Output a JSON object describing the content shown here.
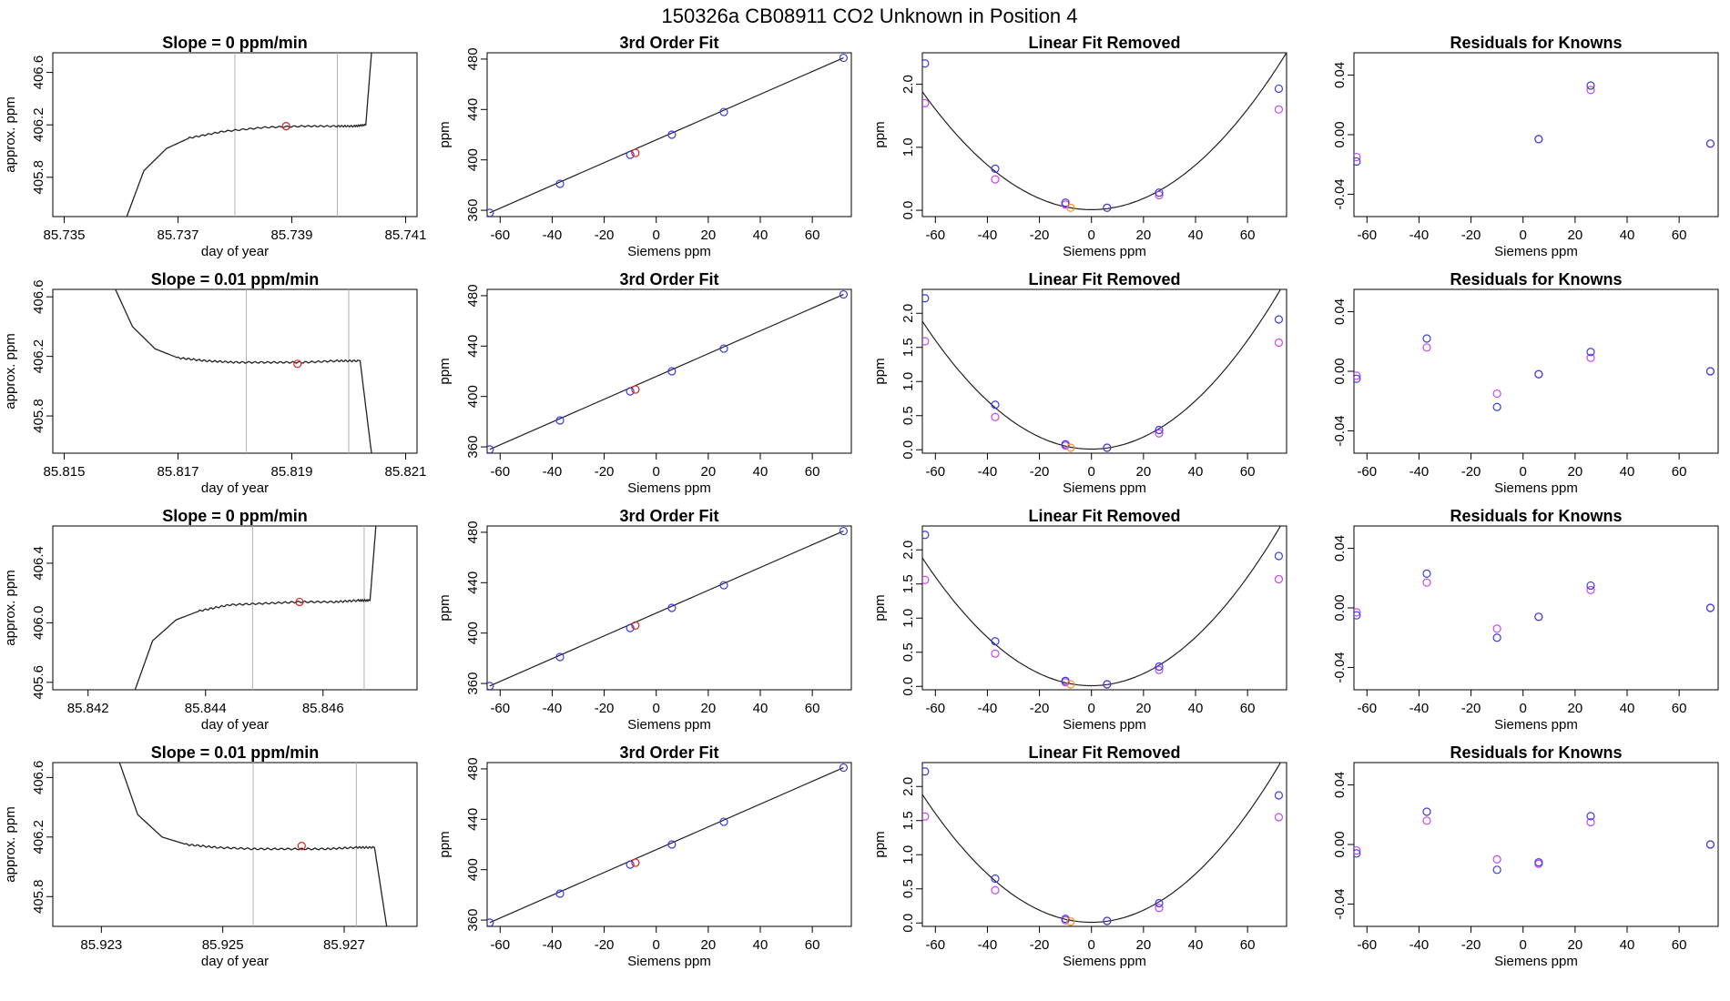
{
  "figure_title": "150326a     CB08911   CO2 Unknown in Position  4",
  "colors": {
    "known_blue": "#3a3ae8",
    "known_magenta": "#cc44ee",
    "unknown_red": "#e02020",
    "unknown_orange": "#ff8c1a",
    "line": "#222222",
    "marker_line": "#b0b0b0"
  },
  "chart_data": [
    {
      "type": "line",
      "row": 0,
      "col": 0,
      "title": "Slope =  0  ppm/min",
      "xlabel": "day of year",
      "ylabel": "approx. ppm",
      "xlim": [
        85.7348,
        85.7412
      ],
      "ylim": [
        405.5,
        406.75
      ],
      "xticks": [
        85.735,
        85.737,
        85.739,
        85.741
      ],
      "xtick_labels": [
        "85.735",
        "85.737",
        "85.739",
        "85.741"
      ],
      "yticks": [
        405.8,
        406.2,
        406.6
      ],
      "ytick_labels": [
        "405.8",
        "406.2",
        "406.6"
      ],
      "series": [
        {
          "x": [
            85.7361,
            85.7364,
            85.7368,
            85.7372,
            85.7378,
            85.7385,
            85.7392,
            85.7398,
            85.7401,
            85.7403,
            85.7404
          ],
          "y": [
            405.5,
            405.85,
            406.02,
            406.1,
            406.15,
            406.18,
            406.19,
            406.19,
            406.19,
            406.2,
            406.75
          ]
        }
      ],
      "vlines": [
        85.738,
        85.7398
      ],
      "marker": {
        "x": 85.7389,
        "y": 406.19
      }
    },
    {
      "type": "scatter",
      "row": 0,
      "col": 1,
      "title": "3rd Order Fit",
      "xlabel": "Siemens ppm",
      "ylabel": "ppm",
      "xlim": [
        -65,
        75
      ],
      "ylim": [
        355,
        485
      ],
      "xticks": [
        -60,
        -40,
        -20,
        0,
        20,
        40,
        60
      ],
      "yticks": [
        360,
        400,
        440,
        480
      ],
      "x": [
        -64,
        -37,
        -10,
        6,
        26,
        72
      ],
      "y": [
        358,
        381,
        404,
        420,
        438,
        481
      ],
      "unknown": {
        "x": -8,
        "y": 405.5
      }
    },
    {
      "type": "scatter",
      "row": 0,
      "col": 2,
      "title": "Linear Fit Removed",
      "xlabel": "Siemens ppm",
      "ylabel": "ppm",
      "xlim": [
        -65,
        75
      ],
      "ylim": [
        -0.1,
        2.5
      ],
      "xticks": [
        -60,
        -40,
        -20,
        0,
        20,
        40,
        60
      ],
      "yticks": [
        0.0,
        1.0,
        2.0
      ],
      "ytick_labels": [
        "0.0",
        "1.0",
        "2.0"
      ],
      "curve_a": 0.000443,
      "x": [
        -64,
        -37,
        -10,
        6,
        26,
        72
      ],
      "y_blue": [
        2.33,
        0.66,
        0.12,
        0.04,
        0.28,
        1.93
      ],
      "y_magenta": [
        1.7,
        0.49,
        0.09,
        0.04,
        0.24,
        1.6
      ],
      "unknown": {
        "x": -8,
        "y": 0.04
      }
    },
    {
      "type": "scatter",
      "row": 0,
      "col": 3,
      "title": "Residuals for Knowns",
      "xlabel": "Siemens ppm",
      "ylabel": "",
      "xlim": [
        -65,
        75
      ],
      "ylim": [
        -0.055,
        0.055
      ],
      "xticks": [
        -60,
        -40,
        -20,
        0,
        20,
        40,
        60
      ],
      "yticks": [
        -0.04,
        0.0,
        0.04
      ],
      "ytick_labels": [
        "-0.04",
        "0.00",
        "0.04"
      ],
      "x": [
        -64,
        6,
        26,
        72
      ],
      "y_blue": [
        -0.018,
        -0.003,
        0.033,
        -0.006
      ],
      "y_magenta": [
        -0.015,
        -0.003,
        0.03,
        -0.006
      ]
    },
    {
      "type": "line",
      "row": 1,
      "col": 0,
      "title": "Slope =  0.01  ppm/min",
      "xlabel": "day of year",
      "ylabel": "approx. ppm",
      "xlim": [
        85.8148,
        85.8212
      ],
      "ylim": [
        405.55,
        406.65
      ],
      "xticks": [
        85.815,
        85.817,
        85.819,
        85.821
      ],
      "xtick_labels": [
        "85.815",
        "85.817",
        "85.819",
        "85.821"
      ],
      "yticks": [
        405.8,
        406.2,
        406.6
      ],
      "ytick_labels": [
        "405.8",
        "406.2",
        "406.6"
      ],
      "series": [
        {
          "x": [
            85.8159,
            85.8162,
            85.8166,
            85.817,
            85.8175,
            85.818,
            85.8186,
            85.8192,
            85.8198,
            85.8202,
            85.8204
          ],
          "y": [
            406.65,
            406.4,
            406.25,
            406.19,
            406.17,
            406.16,
            406.16,
            406.16,
            406.17,
            406.17,
            405.55
          ]
        }
      ],
      "vlines": [
        85.8182,
        85.82
      ],
      "marker": {
        "x": 85.8191,
        "y": 406.15
      }
    },
    {
      "type": "scatter",
      "row": 1,
      "col": 1,
      "title": "3rd Order Fit",
      "xlabel": "Siemens ppm",
      "ylabel": "ppm",
      "xlim": [
        -65,
        75
      ],
      "ylim": [
        355,
        485
      ],
      "xticks": [
        -60,
        -40,
        -20,
        0,
        20,
        40,
        60
      ],
      "yticks": [
        360,
        400,
        440,
        480
      ],
      "x": [
        -64,
        -37,
        -10,
        6,
        26,
        72
      ],
      "y": [
        358,
        381,
        404,
        420,
        438,
        481
      ],
      "unknown": {
        "x": -8,
        "y": 405.5
      }
    },
    {
      "type": "scatter",
      "row": 1,
      "col": 2,
      "title": "Linear Fit Removed",
      "xlabel": "Siemens ppm",
      "ylabel": "ppm",
      "xlim": [
        -65,
        75
      ],
      "ylim": [
        -0.05,
        2.35
      ],
      "xticks": [
        -60,
        -40,
        -20,
        0,
        20,
        40,
        60
      ],
      "yticks": [
        0.0,
        0.5,
        1.0,
        1.5,
        2.0
      ],
      "ytick_labels": [
        "0.0",
        "0.5",
        "1.0",
        "1.5",
        "2.0"
      ],
      "curve_a": 0.000443,
      "x": [
        -64,
        -37,
        -10,
        6,
        26,
        72
      ],
      "y_blue": [
        2.22,
        0.66,
        0.08,
        0.03,
        0.29,
        1.91
      ],
      "y_magenta": [
        1.59,
        0.48,
        0.06,
        0.03,
        0.24,
        1.57
      ],
      "unknown": {
        "x": -8,
        "y": 0.03
      }
    },
    {
      "type": "scatter",
      "row": 1,
      "col": 3,
      "title": "Residuals for Knowns",
      "xlabel": "Siemens ppm",
      "ylabel": "",
      "xlim": [
        -65,
        75
      ],
      "ylim": [
        -0.055,
        0.055
      ],
      "xticks": [
        -60,
        -40,
        -20,
        0,
        20,
        40,
        60
      ],
      "yticks": [
        -0.04,
        0.0,
        0.04
      ],
      "ytick_labels": [
        "-0.04",
        "0.00",
        "0.04"
      ],
      "x": [
        -64,
        -37,
        -10,
        6,
        26,
        72
      ],
      "y_blue": [
        -0.005,
        0.022,
        -0.024,
        -0.002,
        0.013,
        0.0
      ],
      "y_magenta": [
        -0.003,
        0.016,
        -0.015,
        -0.002,
        0.009,
        0.0
      ]
    },
    {
      "type": "line",
      "row": 2,
      "col": 0,
      "title": "Slope =  0  ppm/min",
      "xlabel": "day of year",
      "ylabel": "approx. ppm",
      "xlim": [
        85.8414,
        85.8476
      ],
      "ylim": [
        405.55,
        406.65
      ],
      "xticks": [
        85.842,
        85.844,
        85.846
      ],
      "xtick_labels": [
        "85.842",
        "85.844",
        "85.846"
      ],
      "yticks": [
        405.6,
        406.0,
        406.4
      ],
      "ytick_labels": [
        "405.6",
        "406.0",
        "406.4"
      ],
      "series": [
        {
          "x": [
            85.8428,
            85.8431,
            85.8435,
            85.8439,
            85.8444,
            85.845,
            85.8456,
            85.8462,
            85.8466,
            85.8468,
            85.8469
          ],
          "y": [
            405.55,
            405.88,
            406.02,
            406.08,
            406.12,
            406.13,
            406.14,
            406.14,
            406.15,
            406.15,
            406.65
          ]
        }
      ],
      "vlines": [
        85.8448,
        85.8467
      ],
      "marker": {
        "x": 85.8456,
        "y": 406.14
      }
    },
    {
      "type": "scatter",
      "row": 2,
      "col": 1,
      "title": "3rd Order Fit",
      "xlabel": "Siemens ppm",
      "ylabel": "ppm",
      "xlim": [
        -65,
        75
      ],
      "ylim": [
        355,
        485
      ],
      "xticks": [
        -60,
        -40,
        -20,
        0,
        20,
        40,
        60
      ],
      "yticks": [
        360,
        400,
        440,
        480
      ],
      "x": [
        -64,
        -37,
        -10,
        6,
        26,
        72
      ],
      "y": [
        358,
        381,
        404,
        420,
        438,
        481
      ],
      "unknown": {
        "x": -8,
        "y": 406
      }
    },
    {
      "type": "scatter",
      "row": 2,
      "col": 2,
      "title": "Linear Fit Removed",
      "xlabel": "Siemens ppm",
      "ylabel": "ppm",
      "xlim": [
        -65,
        75
      ],
      "ylim": [
        -0.05,
        2.35
      ],
      "xticks": [
        -60,
        -40,
        -20,
        0,
        20,
        40,
        60
      ],
      "yticks": [
        0.0,
        0.5,
        1.0,
        1.5,
        2.0
      ],
      "ytick_labels": [
        "0.0",
        "0.5",
        "1.0",
        "1.5",
        "2.0"
      ],
      "curve_a": 0.000443,
      "x": [
        -64,
        -37,
        -10,
        6,
        26,
        72
      ],
      "y_blue": [
        2.22,
        0.66,
        0.08,
        0.03,
        0.29,
        1.91
      ],
      "y_magenta": [
        1.56,
        0.48,
        0.06,
        0.03,
        0.24,
        1.57
      ],
      "unknown": {
        "x": -8,
        "y": 0.03
      }
    },
    {
      "type": "scatter",
      "row": 2,
      "col": 3,
      "title": "Residuals for Knowns",
      "xlabel": "Siemens ppm",
      "ylabel": "",
      "xlim": [
        -65,
        75
      ],
      "ylim": [
        -0.055,
        0.055
      ],
      "xticks": [
        -60,
        -40,
        -20,
        0,
        20,
        40,
        60
      ],
      "yticks": [
        -0.04,
        0.0,
        0.04
      ],
      "ytick_labels": [
        "-0.04",
        "0.00",
        "0.04"
      ],
      "x": [
        -64,
        -37,
        -10,
        6,
        26,
        72
      ],
      "y_blue": [
        -0.005,
        0.023,
        -0.02,
        -0.006,
        0.015,
        0.0
      ],
      "y_magenta": [
        -0.003,
        0.017,
        -0.014,
        -0.006,
        0.012,
        0.0
      ]
    },
    {
      "type": "line",
      "row": 3,
      "col": 0,
      "title": "Slope =  0.01  ppm/min",
      "xlabel": "day of year",
      "ylabel": "approx. ppm",
      "xlim": [
        85.9222,
        85.9282
      ],
      "ylim": [
        405.6,
        406.7
      ],
      "xticks": [
        85.923,
        85.925,
        85.927
      ],
      "xtick_labels": [
        "85.923",
        "85.925",
        "85.927"
      ],
      "yticks": [
        405.8,
        406.2,
        406.6
      ],
      "ytick_labels": [
        "405.8",
        "406.2",
        "406.6"
      ],
      "series": [
        {
          "x": [
            85.9233,
            85.9236,
            85.924,
            85.9244,
            85.9249,
            85.9255,
            85.9261,
            85.9267,
            85.9272,
            85.9275,
            85.9277
          ],
          "y": [
            406.7,
            406.35,
            406.2,
            406.15,
            406.13,
            406.12,
            406.12,
            406.12,
            406.13,
            406.13,
            405.6
          ]
        }
      ],
      "vlines": [
        85.9255,
        85.9272
      ],
      "marker": {
        "x": 85.9263,
        "y": 406.14
      }
    },
    {
      "type": "scatter",
      "row": 3,
      "col": 1,
      "title": "3rd Order Fit",
      "xlabel": "Siemens ppm",
      "ylabel": "ppm",
      "xlim": [
        -65,
        75
      ],
      "ylim": [
        355,
        485
      ],
      "xticks": [
        -60,
        -40,
        -20,
        0,
        20,
        40,
        60
      ],
      "yticks": [
        360,
        400,
        440,
        480
      ],
      "x": [
        -64,
        -37,
        -10,
        6,
        26,
        72
      ],
      "y": [
        358,
        381,
        404,
        420,
        438,
        481
      ],
      "unknown": {
        "x": -8,
        "y": 405.5
      }
    },
    {
      "type": "scatter",
      "row": 3,
      "col": 2,
      "title": "Linear Fit Removed",
      "xlabel": "Siemens ppm",
      "ylabel": "ppm",
      "xlim": [
        -65,
        75
      ],
      "ylim": [
        -0.05,
        2.35
      ],
      "xticks": [
        -60,
        -40,
        -20,
        0,
        20,
        40,
        60
      ],
      "yticks": [
        0.0,
        0.5,
        1.0,
        1.5,
        2.0
      ],
      "ytick_labels": [
        "0.0",
        "0.5",
        "1.0",
        "1.5",
        "2.0"
      ],
      "curve_a": 0.000443,
      "x": [
        -64,
        -37,
        -10,
        6,
        26,
        72
      ],
      "y_blue": [
        2.22,
        0.65,
        0.06,
        0.03,
        0.29,
        1.87
      ],
      "y_magenta": [
        1.56,
        0.48,
        0.04,
        0.03,
        0.22,
        1.55
      ],
      "unknown": {
        "x": -8,
        "y": 0.02
      }
    },
    {
      "type": "scatter",
      "row": 3,
      "col": 3,
      "title": "Residuals for Knowns",
      "xlabel": "Siemens ppm",
      "ylabel": "",
      "xlim": [
        -65,
        75
      ],
      "ylim": [
        -0.055,
        0.055
      ],
      "xticks": [
        -60,
        -40,
        -20,
        0,
        20,
        40,
        60
      ],
      "yticks": [
        -0.04,
        0.0,
        0.04
      ],
      "ytick_labels": [
        "-0.04",
        "0.00",
        "0.04"
      ],
      "x": [
        -64,
        -37,
        -10,
        6,
        26,
        72
      ],
      "y_blue": [
        -0.006,
        0.022,
        -0.017,
        -0.012,
        0.019,
        0.0
      ],
      "y_magenta": [
        -0.004,
        0.016,
        -0.01,
        -0.013,
        0.015,
        0.0
      ]
    }
  ]
}
